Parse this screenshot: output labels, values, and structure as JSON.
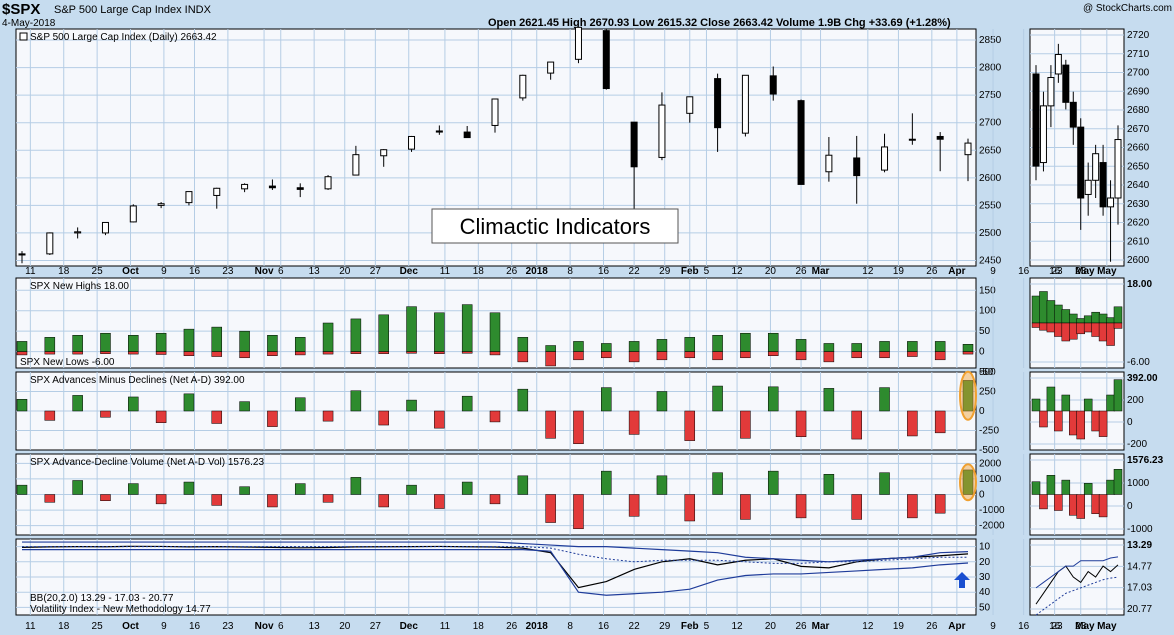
{
  "header": {
    "symbol": "$SPX",
    "name": "S&P 500 Large Cap Index INDX",
    "date": "4-May-2018",
    "quote": "Open 2621.45  High 2670.93  Low 2615.32  Close 2663.42  Volume 1.9B  Chg +33.69 (+1.28%)",
    "watermark": "@ StockCharts.com"
  },
  "annotation": "Climactic Indicators",
  "chart_data": [
    {
      "type": "candlestick",
      "panel": "price",
      "title": "S&P 500 Large Cap Index (Daily) 2663.42",
      "ylim": [
        2440,
        2870
      ],
      "y_ticks": [
        "2850",
        "2800",
        "2750",
        "2700",
        "2650",
        "2600",
        "2550",
        "2500",
        "2450"
      ],
      "last_value": "2663.42",
      "series": [
        {
          "x": "2017-09-08",
          "o": 2462,
          "h": 2467,
          "l": 2445,
          "c": 2460
        },
        {
          "x": "2017-09-15",
          "o": 2462,
          "h": 2501,
          "l": 2460,
          "c": 2500
        },
        {
          "x": "2017-09-22",
          "o": 2500,
          "h": 2510,
          "l": 2490,
          "c": 2502
        },
        {
          "x": "2017-09-29",
          "o": 2500,
          "h": 2519,
          "l": 2496,
          "c": 2519
        },
        {
          "x": "2017-10-06",
          "o": 2520,
          "h": 2552,
          "l": 2519,
          "c": 2549
        },
        {
          "x": "2017-10-13",
          "o": 2550,
          "h": 2556,
          "l": 2545,
          "c": 2553
        },
        {
          "x": "2017-10-20",
          "o": 2555,
          "h": 2575,
          "l": 2550,
          "c": 2575
        },
        {
          "x": "2017-10-27",
          "o": 2568,
          "h": 2582,
          "l": 2544,
          "c": 2581
        },
        {
          "x": "2017-11-03",
          "o": 2580,
          "h": 2590,
          "l": 2574,
          "c": 2588
        },
        {
          "x": "2017-11-10",
          "o": 2585,
          "h": 2597,
          "l": 2578,
          "c": 2582
        },
        {
          "x": "2017-11-17",
          "o": 2582,
          "h": 2590,
          "l": 2565,
          "c": 2579
        },
        {
          "x": "2017-11-24",
          "o": 2580,
          "h": 2605,
          "l": 2578,
          "c": 2602
        },
        {
          "x": "2017-12-01",
          "o": 2605,
          "h": 2658,
          "l": 2605,
          "c": 2642
        },
        {
          "x": "2017-12-08",
          "o": 2640,
          "h": 2652,
          "l": 2620,
          "c": 2651
        },
        {
          "x": "2017-12-15",
          "o": 2652,
          "h": 2676,
          "l": 2647,
          "c": 2675
        },
        {
          "x": "2017-12-22",
          "o": 2685,
          "h": 2695,
          "l": 2678,
          "c": 2683
        },
        {
          "x": "2017-12-29",
          "o": 2683,
          "h": 2694,
          "l": 2673,
          "c": 2673
        },
        {
          "x": "2018-01-05",
          "o": 2695,
          "h": 2743,
          "l": 2682,
          "c": 2743
        },
        {
          "x": "2018-01-12",
          "o": 2745,
          "h": 2787,
          "l": 2740,
          "c": 2786
        },
        {
          "x": "2018-01-19",
          "o": 2790,
          "h": 2810,
          "l": 2778,
          "c": 2810
        },
        {
          "x": "2018-01-26",
          "o": 2815,
          "h": 2873,
          "l": 2808,
          "c": 2873
        },
        {
          "x": "2018-02-02",
          "o": 2867,
          "h": 2871,
          "l": 2760,
          "c": 2762
        },
        {
          "x": "2018-02-09",
          "o": 2701,
          "h": 2701,
          "l": 2533,
          "c": 2620
        },
        {
          "x": "2018-02-16",
          "o": 2637,
          "h": 2755,
          "l": 2632,
          "c": 2732
        },
        {
          "x": "2018-02-23",
          "o": 2717,
          "h": 2747,
          "l": 2700,
          "c": 2747
        },
        {
          "x": "2018-03-02",
          "o": 2780,
          "h": 2789,
          "l": 2647,
          "c": 2691
        },
        {
          "x": "2018-03-09",
          "o": 2681,
          "h": 2786,
          "l": 2675,
          "c": 2786
        },
        {
          "x": "2018-03-16",
          "o": 2785,
          "h": 2802,
          "l": 2740,
          "c": 2752
        },
        {
          "x": "2018-03-23",
          "o": 2740,
          "h": 2742,
          "l": 2588,
          "c": 2588
        },
        {
          "x": "2018-03-30",
          "o": 2611,
          "h": 2674,
          "l": 2593,
          "c": 2641
        },
        {
          "x": "2018-04-06",
          "o": 2636,
          "h": 2676,
          "l": 2553,
          "c": 2604
        },
        {
          "x": "2018-04-13",
          "o": 2614,
          "h": 2680,
          "l": 2610,
          "c": 2656
        },
        {
          "x": "2018-04-20",
          "o": 2670,
          "h": 2717,
          "l": 2660,
          "c": 2670
        },
        {
          "x": "2018-04-27",
          "o": 2675,
          "h": 2683,
          "l": 2612,
          "c": 2670
        },
        {
          "x": "2018-05-04",
          "o": 2642,
          "h": 2671,
          "l": 2594,
          "c": 2663
        }
      ]
    },
    {
      "type": "bar",
      "panel": "new-highs-lows",
      "title": "SPX New Highs 18.00",
      "subtitle": "SPX New Lows -6.00",
      "ylim": [
        -40,
        180
      ],
      "y_ticks": [
        "150",
        "100",
        "50",
        "0",
        "-50"
      ],
      "highs": [
        25,
        35,
        40,
        45,
        40,
        45,
        55,
        60,
        50,
        40,
        35,
        70,
        80,
        90,
        110,
        95,
        115,
        95,
        35,
        15,
        25,
        20,
        25,
        30,
        35,
        40,
        45,
        45,
        30,
        20,
        20,
        25,
        25,
        25,
        18
      ],
      "lows": [
        -8,
        -6,
        -6,
        -5,
        -6,
        -7,
        -10,
        -12,
        -15,
        -10,
        -8,
        -6,
        -5,
        -5,
        -4,
        -5,
        -4,
        -8,
        -25,
        -35,
        -20,
        -15,
        -25,
        -20,
        -15,
        -20,
        -15,
        -10,
        -20,
        -25,
        -15,
        -15,
        -12,
        -20,
        -6
      ]
    },
    {
      "type": "bar",
      "panel": "net-advances-declines",
      "title": "SPX Advances Minus Declines (Net A-D) 392.00",
      "ylim": [
        -500,
        500
      ],
      "y_ticks": [
        "500",
        "250",
        "0",
        "-250",
        "-500"
      ],
      "values": [
        150,
        -120,
        200,
        -80,
        180,
        -150,
        220,
        -160,
        120,
        -200,
        170,
        -130,
        260,
        -180,
        140,
        -220,
        190,
        -140,
        280,
        -350,
        -420,
        300,
        -300,
        250,
        -380,
        320,
        -350,
        310,
        -330,
        290,
        -360,
        300,
        -320,
        -280,
        392
      ]
    },
    {
      "type": "bar",
      "panel": "net-advance-decline-volume",
      "title": "SPX Advance-Decline Volume (Net A-D Vol) 1576.23",
      "ylim": [
        -2600,
        2600
      ],
      "y_ticks": [
        "2000",
        "1000",
        "0",
        "-1000",
        "-2000"
      ],
      "values": [
        600,
        -500,
        900,
        -400,
        700,
        -600,
        800,
        -700,
        500,
        -800,
        700,
        -500,
        1100,
        -800,
        600,
        -900,
        800,
        -600,
        1200,
        -1800,
        -2200,
        1500,
        -1400,
        1200,
        -1700,
        1400,
        -1600,
        1500,
        -1500,
        1300,
        -1600,
        1400,
        -1500,
        -1200,
        1576
      ]
    },
    {
      "type": "line",
      "panel": "vix",
      "title": "BB(20,2.0) 13.29 - 17.03 - 20.77",
      "subtitle": "Volatility Index - New Methodology 14.77",
      "inverted": true,
      "ylim": [
        5,
        55
      ],
      "y_ticks": [
        "10",
        "20",
        "30",
        "40",
        "50"
      ],
      "series": [
        {
          "name": "VIX",
          "values": [
            10.5,
            10.2,
            10.0,
            10.1,
            9.8,
            9.9,
            10.2,
            10.0,
            10.3,
            10.5,
            10.8,
            10.6,
            10.2,
            10.1,
            10.0,
            9.9,
            10.1,
            10.3,
            11.0,
            14,
            37,
            33,
            25,
            20,
            18,
            22,
            19,
            18,
            23,
            24,
            20,
            18,
            17,
            16,
            14.77
          ]
        },
        {
          "name": "Upper BB",
          "values": [
            7,
            7,
            7,
            7,
            7,
            7,
            7,
            7,
            7,
            7,
            7,
            7,
            7,
            7,
            7,
            7,
            7,
            7,
            8,
            9,
            10,
            10,
            11,
            12,
            13,
            14,
            17,
            18,
            19,
            20,
            19,
            18,
            17,
            14,
            13.29
          ]
        },
        {
          "name": "Middle",
          "values": [
            10,
            10,
            10,
            10,
            10,
            10,
            10,
            10,
            10,
            10,
            10,
            10,
            10,
            10,
            10,
            10,
            10,
            10,
            10,
            11,
            15,
            18,
            20,
            19,
            19,
            19,
            20,
            21,
            21,
            20,
            20,
            19,
            18,
            17,
            17.03
          ]
        },
        {
          "name": "Lower BB",
          "values": [
            12,
            12,
            12,
            12,
            12,
            12,
            12,
            12,
            12,
            12,
            12,
            12,
            12,
            12,
            12,
            12,
            12,
            12,
            12,
            13,
            40,
            42,
            41,
            40,
            38,
            32,
            29,
            28,
            28,
            27,
            26,
            25,
            24,
            22,
            20.77
          ]
        }
      ]
    }
  ],
  "x_axis": {
    "labels": [
      {
        "text": "11",
        "bold": false,
        "i": 0.3
      },
      {
        "text": "18",
        "bold": false,
        "i": 1.5
      },
      {
        "text": "25",
        "bold": false,
        "i": 2.7
      },
      {
        "text": "Oct",
        "bold": true,
        "i": 3.9
      },
      {
        "text": "9",
        "bold": false,
        "i": 5.1
      },
      {
        "text": "16",
        "bold": false,
        "i": 6.2
      },
      {
        "text": "23",
        "bold": false,
        "i": 7.4
      },
      {
        "text": "Nov",
        "bold": true,
        "i": 8.7
      },
      {
        "text": "6",
        "bold": false,
        "i": 9.3
      },
      {
        "text": "13",
        "bold": false,
        "i": 10.5
      },
      {
        "text": "20",
        "bold": false,
        "i": 11.6
      },
      {
        "text": "27",
        "bold": false,
        "i": 12.7
      },
      {
        "text": "Dec",
        "bold": true,
        "i": 13.9
      },
      {
        "text": "11",
        "bold": false,
        "i": 15.2
      },
      {
        "text": "18",
        "bold": false,
        "i": 16.4
      },
      {
        "text": "26",
        "bold": false,
        "i": 17.6
      },
      {
        "text": "2018",
        "bold": true,
        "i": 18.5
      },
      {
        "text": "8",
        "bold": false,
        "i": 19.7
      },
      {
        "text": "16",
        "bold": false,
        "i": 20.9
      },
      {
        "text": "22",
        "bold": false,
        "i": 22.0
      },
      {
        "text": "29",
        "bold": false,
        "i": 23.1
      },
      {
        "text": "Feb",
        "bold": true,
        "i": 24.0
      },
      {
        "text": "5",
        "bold": false,
        "i": 24.6
      },
      {
        "text": "12",
        "bold": false,
        "i": 25.7
      },
      {
        "text": "20",
        "bold": false,
        "i": 26.9
      },
      {
        "text": "26",
        "bold": false,
        "i": 28.0
      },
      {
        "text": "Mar",
        "bold": true,
        "i": 28.7
      },
      {
        "text": "12",
        "bold": false,
        "i": 30.4
      },
      {
        "text": "19",
        "bold": false,
        "i": 31.5
      },
      {
        "text": "26",
        "bold": false,
        "i": 32.7
      },
      {
        "text": "Apr",
        "bold": true,
        "i": 33.6
      },
      {
        "text": "9",
        "bold": false,
        "i": 34.9
      },
      {
        "text": "16",
        "bold": false,
        "i": 36.0
      },
      {
        "text": "23",
        "bold": false,
        "i": 37.2
      },
      {
        "text": "May",
        "bold": true,
        "i": 38.2
      }
    ]
  },
  "side_panel": {
    "x_labels": [
      "16",
      "23",
      "May"
    ],
    "price_ticks": [
      "2720",
      "2710",
      "2700",
      "2690",
      "2680",
      "2670",
      "2660",
      "2650",
      "2640",
      "2630",
      "2620",
      "2610",
      "2600"
    ],
    "price_last": "2663.42",
    "hl_ticks": [
      "18.00",
      "-6.00"
    ],
    "ad_ticks": [
      "392.00",
      "200",
      "0",
      "-200"
    ],
    "adv_ticks": [
      "1576.23",
      "1000",
      "0",
      "-1000"
    ],
    "vix_ticks": [
      "13.29",
      "14.77",
      "17.03",
      "20.77"
    ]
  },
  "colors": {
    "up": "#2e8b2e",
    "down": "#e23a3a",
    "grid": "#b5cde5",
    "panel_bg": "#f6f8fc",
    "page_bg": "#c6dcef",
    "highlight": "#f0a030",
    "arrow": "#1a4fd0"
  }
}
